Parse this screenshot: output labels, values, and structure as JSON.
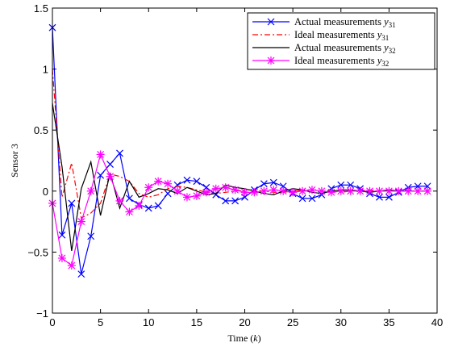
{
  "chart_data": {
    "type": "line",
    "xlabel": "Time (k)",
    "ylabel": "Sensor 3",
    "xlim": [
      0,
      40
    ],
    "ylim": [
      -1,
      1.5
    ],
    "xticks": [
      0,
      5,
      10,
      15,
      20,
      25,
      30,
      35,
      40
    ],
    "xtick_labels": [
      "0",
      "5",
      "10",
      "15",
      "20",
      "25",
      "30",
      "35",
      "40"
    ],
    "yticks": [
      -1,
      -0.5,
      0,
      0.5,
      1,
      1.5
    ],
    "ytick_labels": [
      "−1",
      "−0.5",
      "0",
      "0.5",
      "1",
      "1.5"
    ],
    "grid": false,
    "legend_position": "top-right",
    "x": [
      0,
      1,
      2,
      3,
      4,
      5,
      6,
      7,
      8,
      9,
      10,
      11,
      12,
      13,
      14,
      15,
      16,
      17,
      18,
      19,
      20,
      21,
      22,
      23,
      24,
      25,
      26,
      27,
      28,
      29,
      30,
      31,
      32,
      33,
      34,
      35,
      36,
      37,
      38,
      39
    ],
    "series": [
      {
        "name": "Actual measurements y31",
        "color": "#0000ff",
        "line_style": "solid",
        "marker": "x",
        "values": [
          1.34,
          -0.36,
          -0.1,
          -0.68,
          -0.37,
          0.13,
          0.22,
          0.31,
          -0.06,
          -0.11,
          -0.14,
          -0.12,
          -0.02,
          0.05,
          0.09,
          0.08,
          0.03,
          -0.03,
          -0.08,
          -0.08,
          -0.05,
          0.01,
          0.06,
          0.07,
          0.04,
          -0.02,
          -0.06,
          -0.06,
          -0.03,
          0.02,
          0.05,
          0.05,
          0.02,
          -0.02,
          -0.05,
          -0.05,
          -0.01,
          0.03,
          0.04,
          0.04
        ]
      },
      {
        "name": "Ideal measurements y31",
        "color": "#ff0000",
        "line_style": "dashdot",
        "marker": "none",
        "values": [
          1.0,
          -0.05,
          0.23,
          -0.22,
          -0.18,
          -0.1,
          0.14,
          0.12,
          0.08,
          -0.02,
          -0.05,
          -0.03,
          0.02,
          0.04,
          0.03,
          0.01,
          -0.01,
          -0.02,
          -0.01,
          0.0,
          0.01,
          0.01,
          0.0,
          -0.01,
          -0.01,
          0.0,
          0.01,
          0.01,
          0.0,
          0.0,
          -0.01,
          0.0,
          0.0,
          0.01,
          0.0,
          0.0,
          0.0,
          0.0,
          0.0,
          0.0
        ]
      },
      {
        "name": "Actual measurements y32",
        "color": "#000000",
        "line_style": "solid",
        "marker": "none",
        "values": [
          0.72,
          0.2,
          -0.49,
          0.02,
          0.24,
          -0.2,
          0.15,
          -0.14,
          0.08,
          -0.05,
          -0.02,
          0.02,
          0.01,
          -0.02,
          0.03,
          0.0,
          -0.03,
          -0.02,
          0.05,
          0.03,
          0.02,
          0.0,
          -0.02,
          -0.03,
          0.0,
          0.02,
          0.01,
          -0.01,
          -0.02,
          0.0,
          0.01,
          0.01,
          0.0,
          -0.01,
          0.0,
          0.01,
          0.0,
          0.0,
          0.0,
          0.0
        ]
      },
      {
        "name": "Ideal measurements y32",
        "color": "#ff00ff",
        "line_style": "solid",
        "marker": "asterisk",
        "values": [
          -0.1,
          -0.55,
          -0.61,
          -0.25,
          0.0,
          0.3,
          0.12,
          -0.08,
          -0.17,
          -0.12,
          0.03,
          0.08,
          0.06,
          0.0,
          -0.05,
          -0.04,
          -0.01,
          0.02,
          0.03,
          0.01,
          -0.01,
          -0.01,
          0.0,
          0.01,
          0.0,
          -0.01,
          0.0,
          0.01,
          0.0,
          -0.01,
          0.0,
          0.0,
          0.0,
          0.0,
          0.0,
          0.0,
          0.0,
          0.0,
          0.0,
          0.0
        ]
      }
    ],
    "legend": [
      {
        "text": "Actual measurements ",
        "var": "y",
        "sub": "31"
      },
      {
        "text": "Ideal measurements ",
        "var": "y",
        "sub": "31"
      },
      {
        "text": "Actual measurements ",
        "var": "y",
        "sub": "32"
      },
      {
        "text": "Ideal measurements ",
        "var": "y",
        "sub": "32"
      }
    ]
  }
}
